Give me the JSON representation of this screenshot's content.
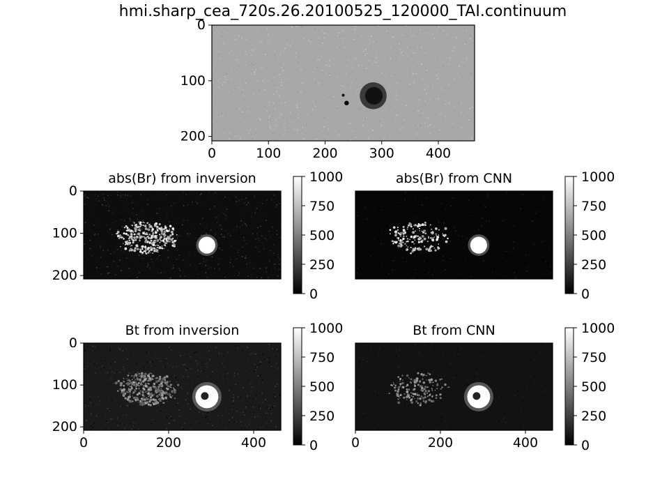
{
  "figure": {
    "title": "hmi.sharp_cea_720s.26.20100525_120000_TAI.continuum"
  },
  "chart_data": [
    {
      "type": "heatmap",
      "id": "continuum",
      "title": "",
      "colormap": "gray",
      "xlim": [
        0,
        464
      ],
      "ylim": [
        208,
        0
      ],
      "x_ticks": [
        0,
        100,
        200,
        300,
        400
      ],
      "y_ticks": [
        0,
        100,
        200
      ],
      "features": [
        {
          "label": "sunspot",
          "x": 285,
          "y": 127,
          "radius": 25
        },
        {
          "label": "pore",
          "x": 238,
          "y": 140,
          "radius": 4
        },
        {
          "label": "pore",
          "x": 232,
          "y": 126,
          "radius": 2
        }
      ]
    },
    {
      "type": "heatmap",
      "id": "absbr-inversion",
      "title": "abs(Br) from inversion",
      "colormap": "gray",
      "xlim": [
        0,
        464
      ],
      "ylim": [
        208,
        0
      ],
      "x_ticks": [],
      "y_ticks": [
        0,
        100,
        200
      ],
      "colorbar": {
        "min": 0,
        "max": 1000,
        "ticks": [
          0,
          250,
          500,
          750,
          1000
        ]
      },
      "features": [
        {
          "label": "sunspot",
          "x": 290,
          "y": 128,
          "radius": 22
        },
        {
          "label": "plage",
          "x": 150,
          "y": 110,
          "radius": 70
        }
      ]
    },
    {
      "type": "heatmap",
      "id": "absbr-cnn",
      "title": "abs(Br) from CNN",
      "colormap": "gray",
      "xlim": [
        0,
        464
      ],
      "ylim": [
        208,
        0
      ],
      "x_ticks": [],
      "y_ticks": [],
      "colorbar": {
        "min": 0,
        "max": 1000,
        "ticks": [
          0,
          250,
          500,
          750,
          1000
        ]
      },
      "features": [
        {
          "label": "sunspot",
          "x": 290,
          "y": 128,
          "radius": 22
        },
        {
          "label": "plage",
          "x": 150,
          "y": 110,
          "radius": 70
        }
      ]
    },
    {
      "type": "heatmap",
      "id": "bt-inversion",
      "title": "Bt from inversion",
      "colormap": "gray",
      "xlim": [
        0,
        464
      ],
      "ylim": [
        208,
        0
      ],
      "x_ticks": [
        0,
        200,
        400
      ],
      "y_ticks": [
        0,
        100,
        200
      ],
      "colorbar": {
        "min": 0,
        "max": 1000,
        "ticks": [
          0,
          250,
          500,
          750,
          1000
        ]
      },
      "features": [
        {
          "label": "sunspot",
          "x": 290,
          "y": 128,
          "radius": 30
        },
        {
          "label": "plage",
          "x": 150,
          "y": 110,
          "radius": 70
        }
      ]
    },
    {
      "type": "heatmap",
      "id": "bt-cnn",
      "title": "Bt from CNN",
      "colormap": "gray",
      "xlim": [
        0,
        464
      ],
      "ylim": [
        208,
        0
      ],
      "x_ticks": [
        0,
        200,
        400
      ],
      "y_ticks": [],
      "colorbar": {
        "min": 0,
        "max": 1000,
        "ticks": [
          0,
          250,
          500,
          750,
          1000
        ]
      },
      "features": [
        {
          "label": "sunspot",
          "x": 290,
          "y": 128,
          "radius": 30
        },
        {
          "label": "plage",
          "x": 150,
          "y": 110,
          "radius": 70
        }
      ]
    }
  ]
}
